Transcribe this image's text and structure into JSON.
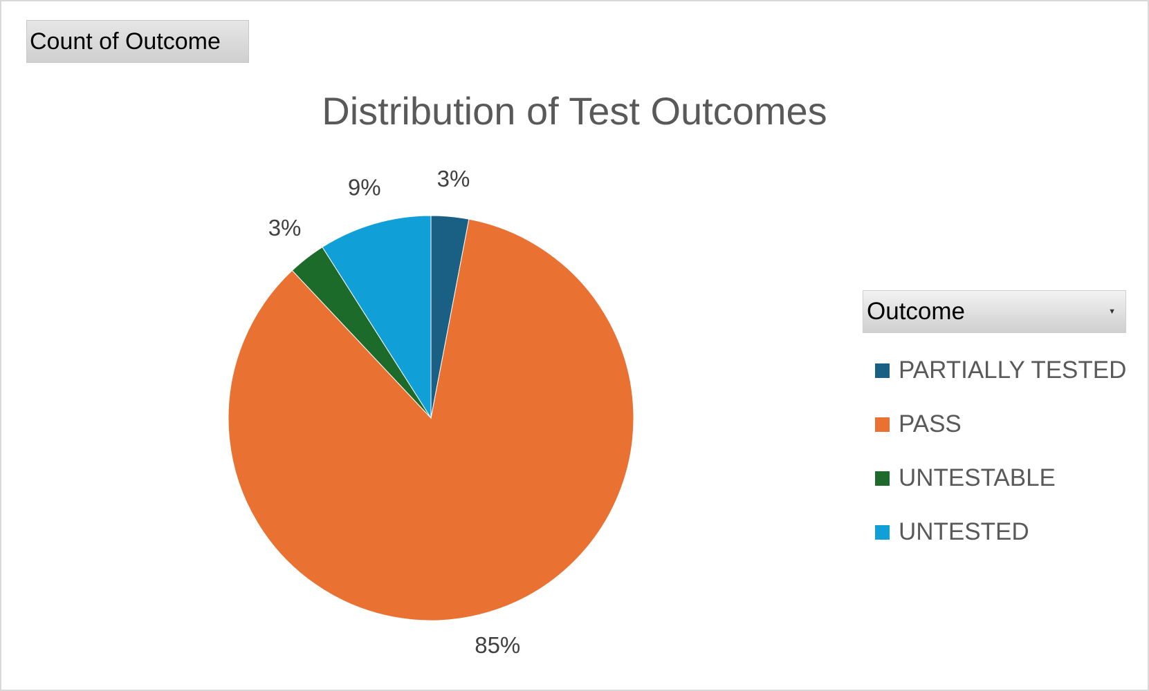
{
  "field_button": {
    "label": "Count of Outcome"
  },
  "legend": {
    "header": "Outcome",
    "dropdown_icon": "dropdown-arrow-icon"
  },
  "chart_data": {
    "type": "pie",
    "title": "Distribution of Test Outcomes",
    "legend_position": "right",
    "categories": [
      "PARTIALLY TESTED",
      "PASS",
      "UNTESTABLE",
      "UNTESTED"
    ],
    "values": [
      3,
      85,
      3,
      9
    ],
    "labels": [
      "3%",
      "85%",
      "3%",
      "9%"
    ],
    "colors": [
      "#1a5f84",
      "#e97132",
      "#1d6b2a",
      "#119fd8"
    ]
  }
}
